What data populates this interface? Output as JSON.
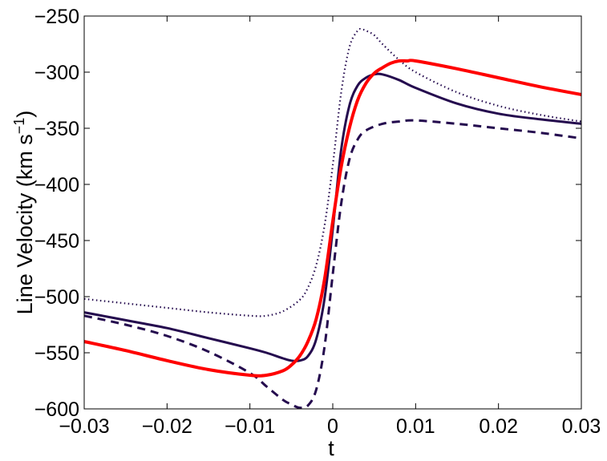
{
  "chart_data": {
    "type": "line",
    "title": "",
    "xlabel": "t",
    "ylabel_main": "Line Velocity (km s",
    "ylabel_sup": "−1",
    "ylabel_close": ")",
    "xlim": [
      -0.03,
      0.03
    ],
    "ylim": [
      -600,
      -250
    ],
    "x_ticks": [
      -0.03,
      -0.02,
      -0.01,
      0,
      0.01,
      0.02,
      0.03
    ],
    "x_tick_labels": [
      "−0.03",
      "−0.02",
      "−0.01",
      "0",
      "0.01",
      "0.02",
      "0.03"
    ],
    "y_ticks": [
      -250,
      -300,
      -350,
      -400,
      -450,
      -500,
      -550,
      -600
    ],
    "y_tick_labels": [
      "−250",
      "−300",
      "−350",
      "−400",
      "−450",
      "−500",
      "−550",
      "−600"
    ],
    "grid": false,
    "series": [
      {
        "style": "dotted",
        "color": "#240a4e",
        "width": 2.2,
        "x": [
          -0.03,
          -0.025,
          -0.02,
          -0.015,
          -0.01,
          -0.008,
          -0.006,
          -0.004,
          -0.003,
          -0.002,
          -0.001,
          0,
          0.001,
          0.002,
          0.003,
          0.0035,
          0.004,
          0.005,
          0.006,
          0.008,
          0.01,
          0.015,
          0.02,
          0.025,
          0.03
        ],
        "y": [
          -502,
          -506,
          -510,
          -514,
          -517,
          -517,
          -513,
          -503,
          -492,
          -472,
          -437,
          -383,
          -319,
          -278,
          -263,
          -262,
          -263,
          -267,
          -275,
          -289,
          -300,
          -318,
          -330,
          -338,
          -344
        ]
      },
      {
        "style": "solid",
        "color": "#240a4e",
        "width": 3,
        "x": [
          -0.03,
          -0.025,
          -0.02,
          -0.015,
          -0.01,
          -0.008,
          -0.006,
          -0.005,
          -0.004,
          -0.003,
          -0.002,
          -0.001,
          0,
          0.001,
          0.002,
          0.003,
          0.004,
          0.005,
          0.006,
          0.008,
          0.01,
          0.015,
          0.02,
          0.025,
          0.03
        ],
        "y": [
          -514,
          -521,
          -528,
          -537,
          -546,
          -550,
          -555,
          -557,
          -557,
          -553,
          -538,
          -502,
          -440,
          -370,
          -330,
          -312,
          -305,
          -302,
          -302,
          -307,
          -314,
          -328,
          -337,
          -342,
          -346
        ]
      },
      {
        "style": "dashed",
        "color": "#240a4e",
        "width": 3,
        "x": [
          -0.03,
          -0.025,
          -0.02,
          -0.015,
          -0.01,
          -0.008,
          -0.006,
          -0.005,
          -0.004,
          -0.003,
          -0.002,
          -0.001,
          0,
          0.001,
          0.002,
          0.003,
          0.004,
          0.006,
          0.008,
          0.01,
          0.015,
          0.02,
          0.025,
          0.03
        ],
        "y": [
          -517,
          -525,
          -535,
          -549,
          -568,
          -580,
          -592,
          -596,
          -599,
          -597,
          -583,
          -545,
          -480,
          -418,
          -378,
          -360,
          -352,
          -346,
          -344,
          -343,
          -346,
          -350,
          -354,
          -359
        ]
      },
      {
        "style": "solid",
        "color": "#ff0000",
        "width": 4,
        "x": [
          -0.03,
          -0.025,
          -0.02,
          -0.015,
          -0.01,
          -0.008,
          -0.006,
          -0.005,
          -0.004,
          -0.003,
          -0.002,
          -0.001,
          0,
          0.001,
          0.002,
          0.003,
          0.004,
          0.005,
          0.006,
          0.007,
          0.008,
          0.009,
          0.01,
          0.015,
          0.02,
          0.025,
          0.03
        ],
        "y": [
          -540,
          -548,
          -557,
          -565,
          -570,
          -570,
          -566,
          -561,
          -553,
          -540,
          -520,
          -485,
          -433,
          -385,
          -350,
          -325,
          -310,
          -301,
          -296,
          -292,
          -290,
          -290,
          -290,
          -297,
          -305,
          -313,
          -320
        ]
      }
    ]
  }
}
